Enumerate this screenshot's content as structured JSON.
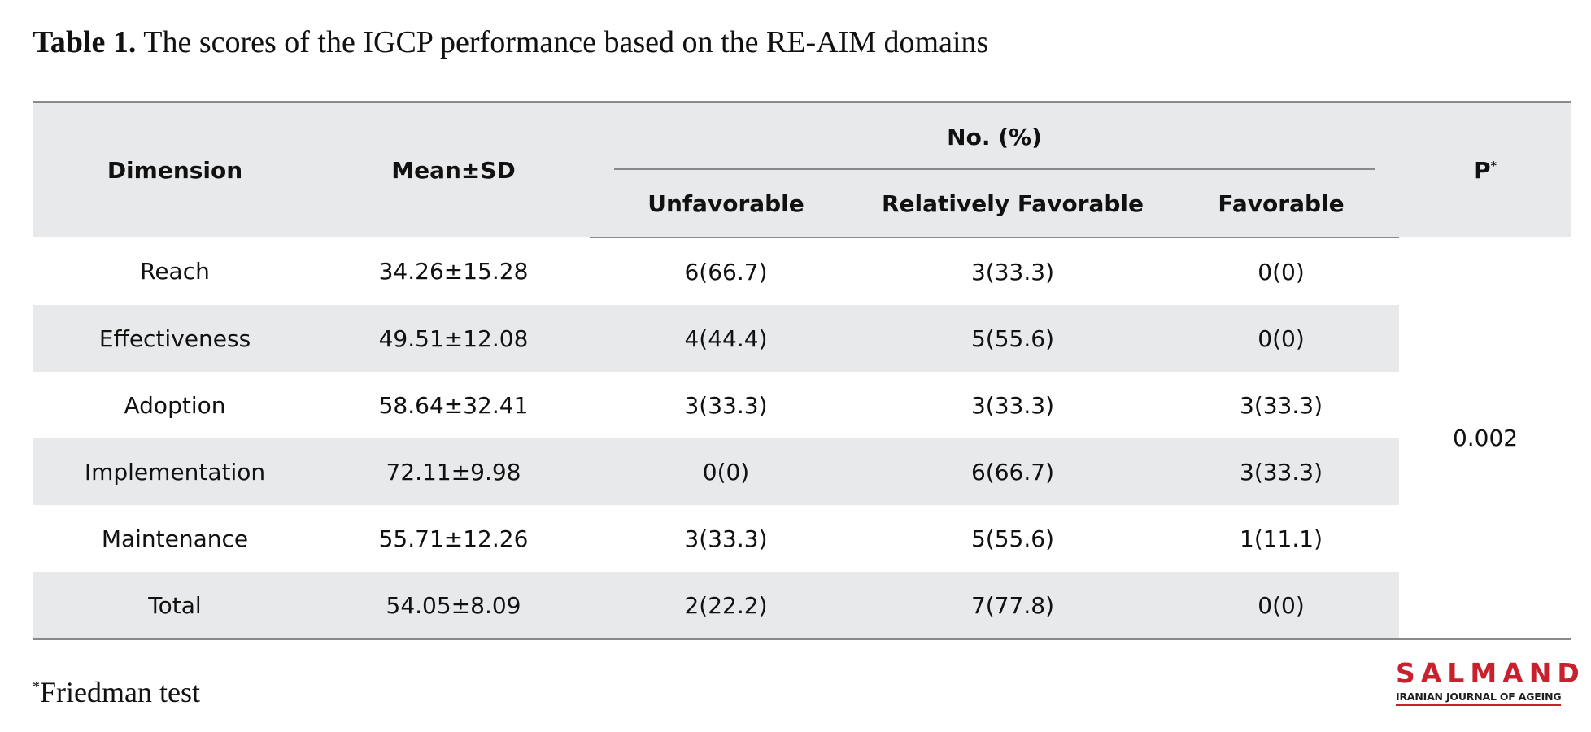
{
  "caption": {
    "label": "Table 1.",
    "text": " The scores of the IGCP performance based on the RE-AIM domains"
  },
  "table": {
    "headers": {
      "dimension": "Dimension",
      "mean_sd": "Mean±SD",
      "group": "No. (%)",
      "unfavorable": "Unfavorable",
      "relatively_favorable": "Relatively Favorable",
      "favorable": "Favorable",
      "p": "P",
      "p_mark": "*"
    },
    "rows": [
      {
        "dimension": "Reach",
        "mean_sd": "34.26±15.28",
        "unfavorable": "6(66.7)",
        "relatively_favorable": "3(33.3)",
        "favorable": "0(0)"
      },
      {
        "dimension": "Effectiveness",
        "mean_sd": "49.51±12.08",
        "unfavorable": "4(44.4)",
        "relatively_favorable": "5(55.6)",
        "favorable": "0(0)"
      },
      {
        "dimension": "Adoption",
        "mean_sd": "58.64±32.41",
        "unfavorable": "3(33.3)",
        "relatively_favorable": "3(33.3)",
        "favorable": "3(33.3)"
      },
      {
        "dimension": "Implementation",
        "mean_sd": "72.11±9.98",
        "unfavorable": "0(0)",
        "relatively_favorable": "6(66.7)",
        "favorable": "3(33.3)"
      },
      {
        "dimension": "Maintenance",
        "mean_sd": "55.71±12.26",
        "unfavorable": "3(33.3)",
        "relatively_favorable": "5(55.6)",
        "favorable": "1(11.1)"
      },
      {
        "dimension": "Total",
        "mean_sd": "54.05±8.09",
        "unfavorable": "2(22.2)",
        "relatively_favorable": "7(77.8)",
        "favorable": "0(0)"
      }
    ],
    "p_value": "0.002"
  },
  "footnote": {
    "mark": "*",
    "text": "Friedman test"
  },
  "logo": {
    "word": "SALMAND",
    "subtitle": "IRANIAN JOURNAL OF AGEING",
    "color": "#c8202d"
  }
}
